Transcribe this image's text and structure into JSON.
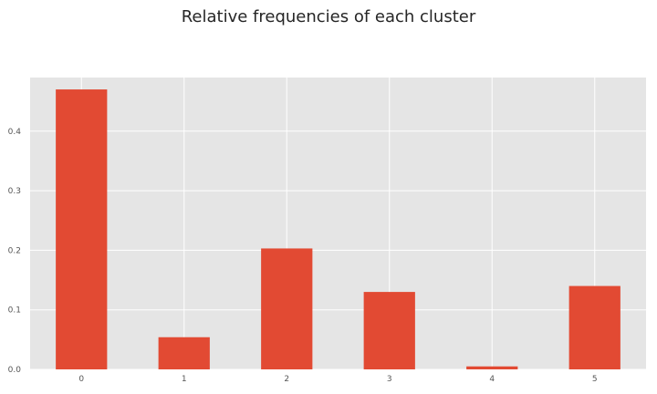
{
  "chart_data": {
    "type": "bar",
    "title": "Relative frequencies of each cluster",
    "xlabel": "",
    "ylabel": "",
    "categories": [
      "0",
      "1",
      "2",
      "3",
      "4",
      "5"
    ],
    "values": [
      0.47,
      0.054,
      0.203,
      0.13,
      0.005,
      0.14
    ],
    "ylim": [
      0.0,
      0.49
    ],
    "yticks": [
      "0.0",
      "0.1",
      "0.2",
      "0.3",
      "0.4"
    ],
    "grid": true,
    "colors": {
      "bar": "#E24A33",
      "plot_background": "#E5E5E5",
      "grid": "#FFFFFF"
    }
  }
}
